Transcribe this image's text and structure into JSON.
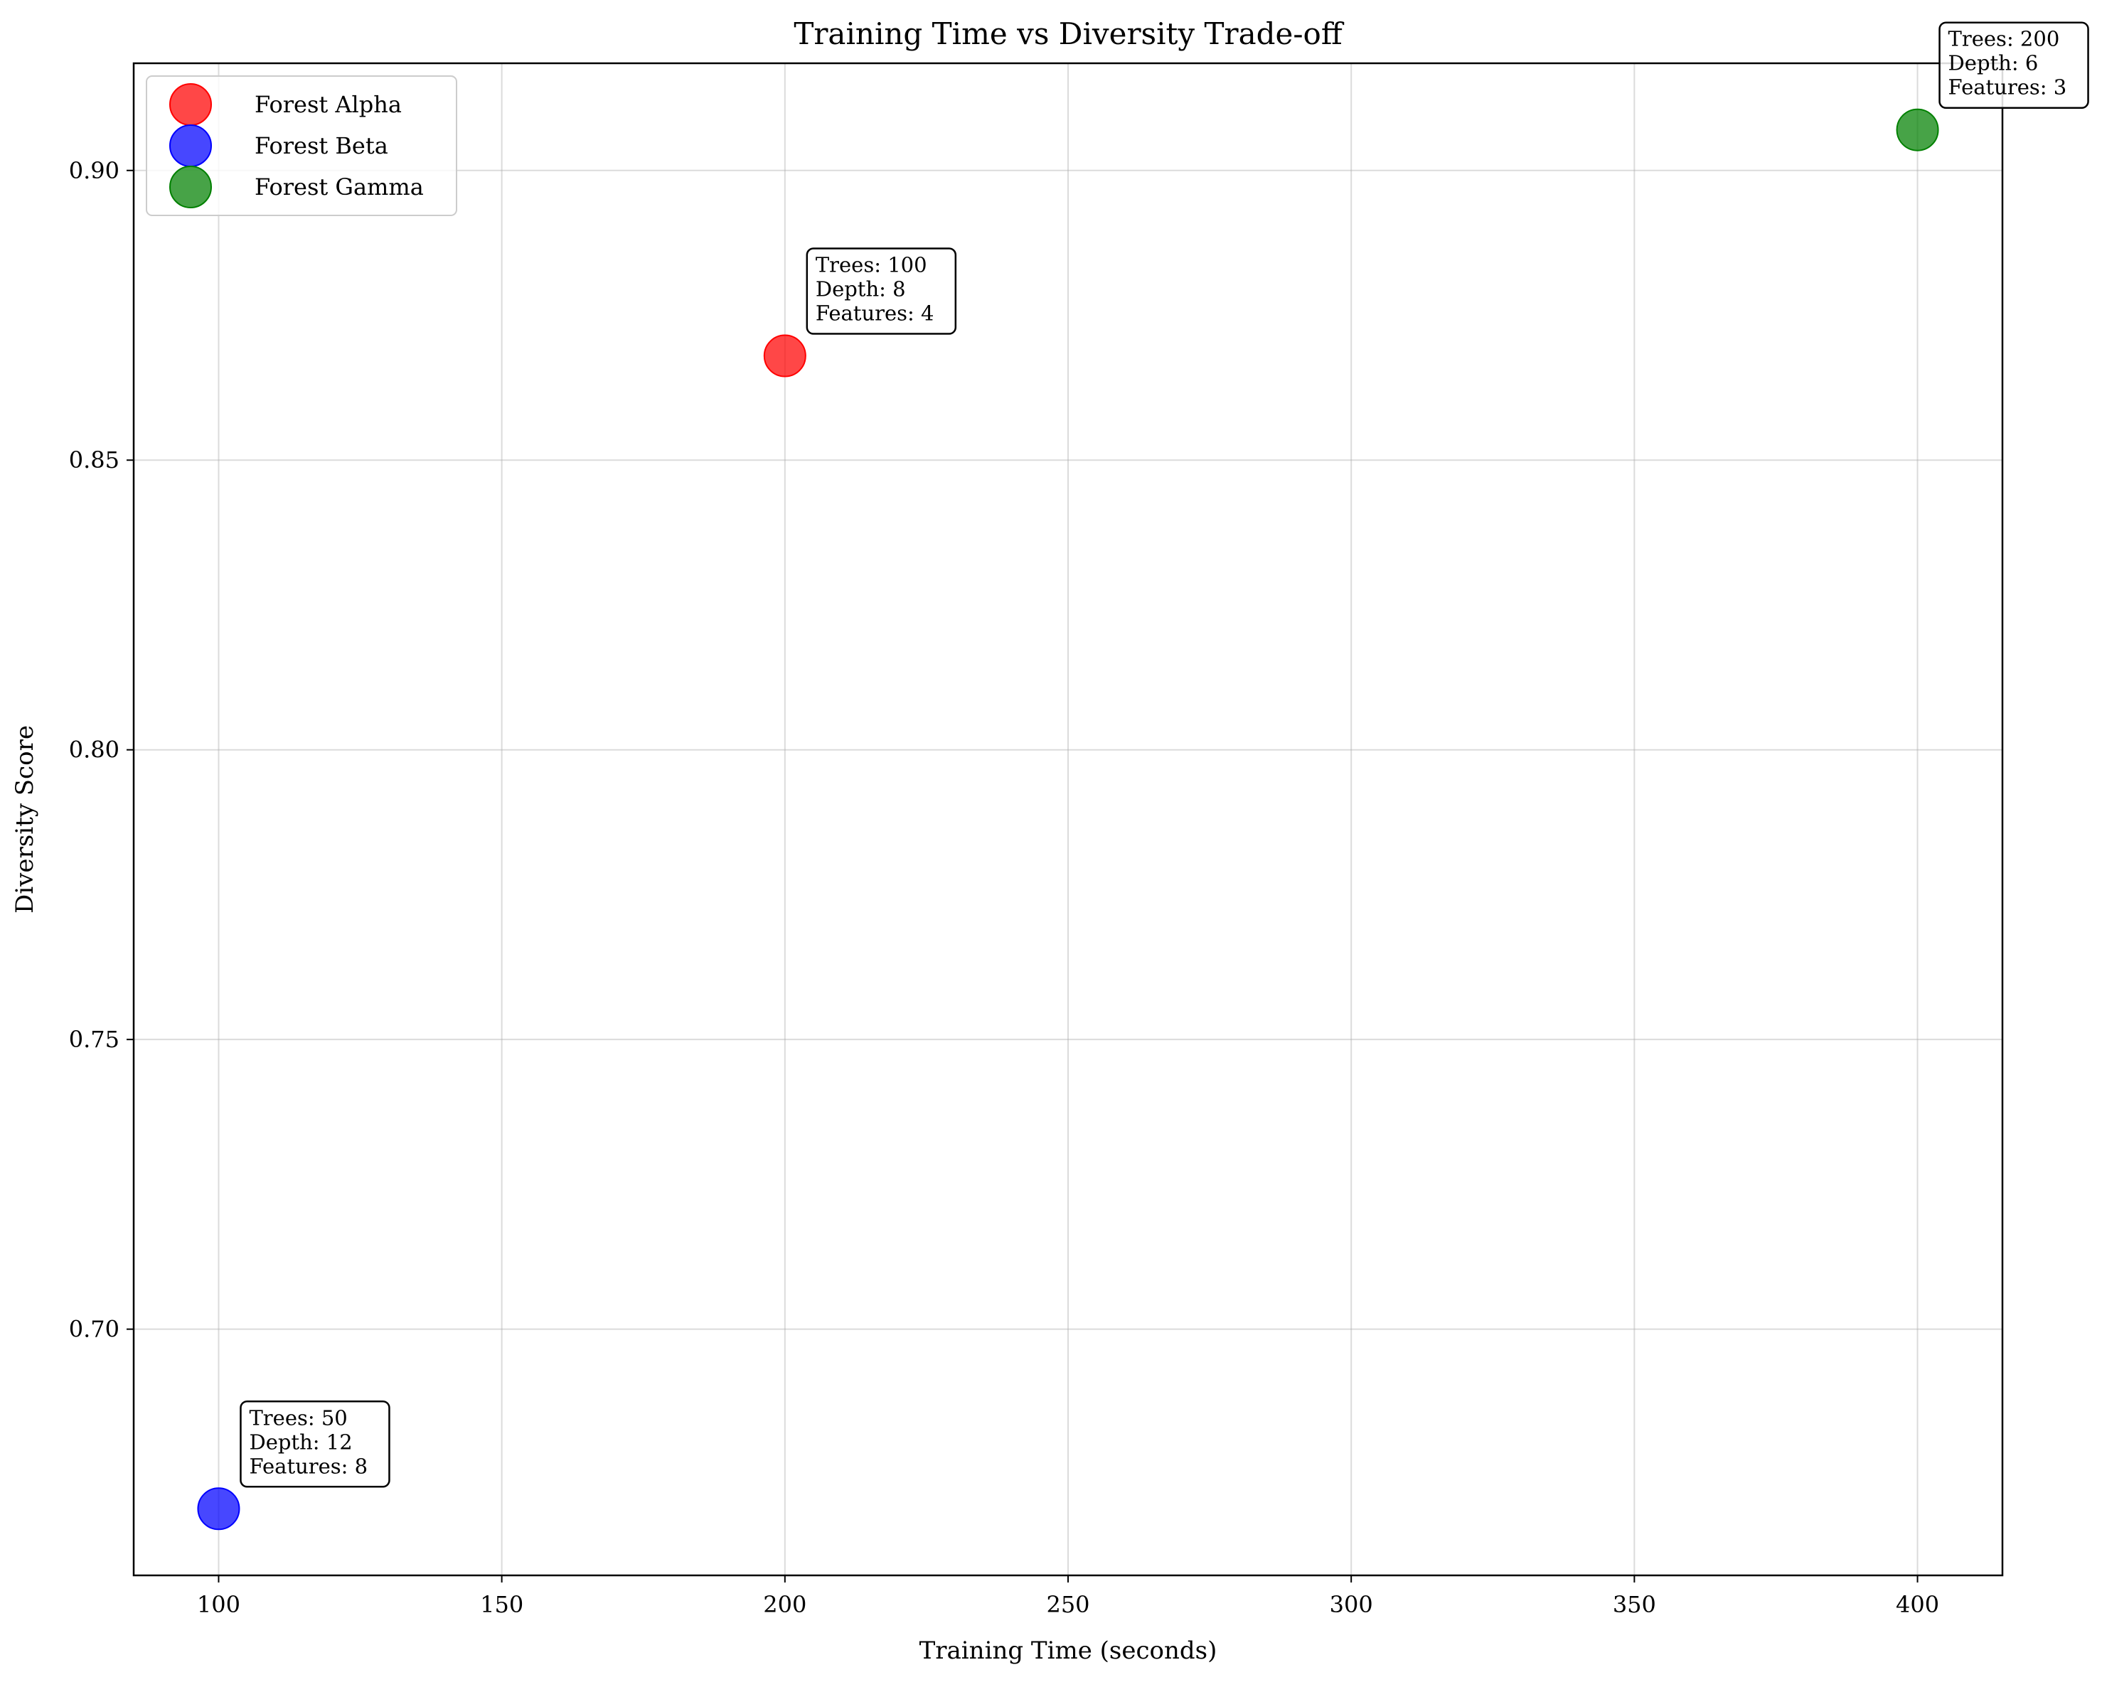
{
  "chart_data": {
    "type": "scatter",
    "title": "Training Time vs Diversity Trade-off",
    "xlabel": "Training Time (seconds)",
    "ylabel": "Diversity Score",
    "xlim": [
      85,
      415
    ],
    "ylim": [
      0.6575,
      0.9185
    ],
    "xticks": [
      100,
      150,
      200,
      250,
      300,
      350,
      400
    ],
    "yticks": [
      0.7,
      0.75,
      0.8,
      0.85,
      0.9
    ],
    "ytick_decimals": 2,
    "grid": true,
    "legend_position": "top-left",
    "series": [
      {
        "name": "Forest Alpha",
        "color": "#ff0000",
        "points": [
          {
            "x": 200,
            "y": 0.868,
            "annotation": [
              "Trees: 100",
              "Depth: 8",
              "Features: 4"
            ]
          }
        ]
      },
      {
        "name": "Forest Beta",
        "color": "#0000ff",
        "points": [
          {
            "x": 100,
            "y": 0.669,
            "annotation": [
              "Trees: 50",
              "Depth: 12",
              "Features: 8"
            ]
          }
        ]
      },
      {
        "name": "Forest Gamma",
        "color": "#008000",
        "points": [
          {
            "x": 400,
            "y": 0.907,
            "annotation": [
              "Trees: 200",
              "Depth: 6",
              "Features: 3"
            ]
          }
        ]
      }
    ]
  }
}
